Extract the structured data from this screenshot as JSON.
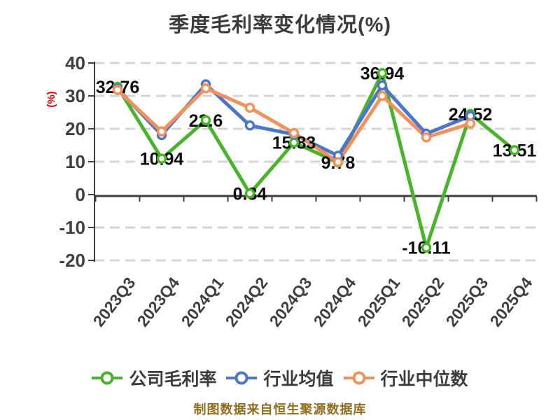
{
  "title": "季度毛利率变化情况(%)",
  "y_axis_name": "(%)",
  "caption": "制图数据来自恒生聚源数据库",
  "colors": {
    "title_text": "#3b3b3b",
    "axis": "#3f3f3f",
    "tick_text": "#3f3f3f",
    "grid": "#d4d4d4",
    "data_label": "#0d0d0d",
    "y_axis_name": "#e60000",
    "caption_text": "#8f6f1c",
    "series_green": "#47b42a",
    "series_blue": "#4c76ca",
    "series_orange": "#f2915c",
    "marker_fill": "#ffffff"
  },
  "chart_data": {
    "type": "line",
    "title": "季度毛利率变化情况(%)",
    "ylabel": "(%)",
    "ylim": [
      -20,
      40
    ],
    "yticks": [
      40,
      30,
      20,
      10,
      0,
      -10,
      -20
    ],
    "grid": "dashed horizontal",
    "legend_position": "bottom",
    "x_axis_on_zero": true,
    "categories": [
      "2023Q3",
      "2023Q4",
      "2024Q1",
      "2024Q2",
      "2024Q3",
      "2024Q4",
      "2025Q1",
      "2025Q2",
      "2025Q3",
      "2025Q4"
    ],
    "series": [
      {
        "name": "公司毛利率",
        "color": "#47b42a",
        "show_labels": true,
        "values": [
          32.76,
          10.94,
          22.6,
          0.34,
          15.83,
          9.78,
          36.94,
          -16.11,
          24.52,
          13.51
        ]
      },
      {
        "name": "行业均值",
        "color": "#4c76ca",
        "show_labels": false,
        "values": [
          32.2,
          18.1,
          33.5,
          21.0,
          18.3,
          11.8,
          33.2,
          18.5,
          23.9,
          null
        ]
      },
      {
        "name": "行业中位数",
        "color": "#f2915c",
        "show_labels": false,
        "values": [
          31.8,
          19.2,
          32.3,
          26.4,
          18.7,
          9.9,
          30.0,
          17.4,
          21.6,
          null
        ]
      }
    ]
  }
}
